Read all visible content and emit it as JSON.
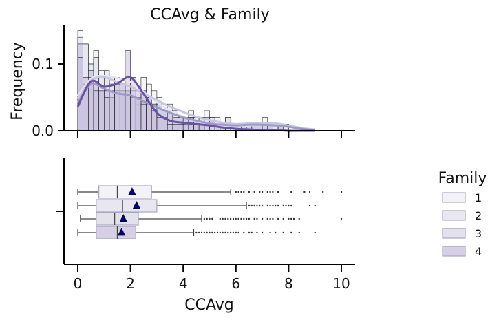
{
  "chart_data": {
    "type": "histogram+boxplot",
    "title": "CCAvg & Family",
    "xlabel": "CCAvg",
    "top_panel": {
      "ylabel": "Frequency",
      "yticks": [
        {
          "value": 0.0,
          "label": "0.0"
        },
        {
          "value": 0.1,
          "label": "0.1"
        }
      ],
      "ylim": [
        0,
        0.158
      ],
      "bin_width": 0.2,
      "kde_points": [
        0,
        0.5,
        1,
        1.5,
        2,
        2.5,
        3,
        3.5,
        4,
        4.5,
        5,
        5.5,
        6,
        6.5,
        7,
        7.5,
        8,
        8.5,
        9
      ],
      "series": [
        {
          "name": "1",
          "color": "#efedf5",
          "kde_color": "#e6e3f0",
          "hist": [
            0.15,
            0.13,
            0.1,
            0.12,
            0.09,
            0.08,
            0.08,
            0.08,
            0.06,
            0.06,
            0.05,
            0.04,
            0.08,
            0.07,
            0.06,
            0.05,
            0.03,
            0.04,
            0.03,
            0.02,
            0.02,
            0.03,
            0.02,
            0.02,
            0.03,
            0.02,
            0.02,
            0.01,
            0.02,
            0.01,
            0.01,
            0.01,
            0.01,
            0.01,
            0.01,
            0.02,
            0.01,
            0.01,
            0.01,
            0.01
          ],
          "kde": [
            0.052,
            0.078,
            0.082,
            0.079,
            0.073,
            0.058,
            0.043,
            0.03,
            0.021,
            0.014,
            0.01,
            0.007,
            0.006,
            0.008,
            0.01,
            0.009,
            0.006,
            0.003,
            0.001
          ]
        },
        {
          "name": "2",
          "color": "#dadaeb",
          "kde_color": "#c7c5e1",
          "hist": [
            0.14,
            0.13,
            0.1,
            0.11,
            0.08,
            0.09,
            0.07,
            0.07,
            0.07,
            0.06,
            0.06,
            0.05,
            0.06,
            0.05,
            0.04,
            0.04,
            0.03,
            0.03,
            0.03,
            0.02,
            0.02,
            0.02,
            0.02,
            0.02,
            0.02,
            0.02,
            0.01,
            0.01,
            0.02,
            0.01,
            0.01,
            0.01,
            0.01,
            0.01,
            0.01,
            0.01,
            0.01,
            0.01,
            0.01,
            0.01
          ],
          "kde": [
            0.048,
            0.075,
            0.08,
            0.073,
            0.066,
            0.056,
            0.046,
            0.036,
            0.028,
            0.021,
            0.016,
            0.012,
            0.01,
            0.011,
            0.012,
            0.011,
            0.008,
            0.004,
            0.002
          ]
        },
        {
          "name": "3",
          "color": "#bcbddc",
          "kde_color": "#9e9ac8",
          "hist": [
            0.13,
            0.07,
            0.09,
            0.07,
            0.06,
            0.06,
            0.05,
            0.06,
            0.06,
            0.06,
            0.05,
            0.05,
            0.06,
            0.05,
            0.04,
            0.04,
            0.03,
            0.03,
            0.02,
            0.02,
            0.02,
            0.02,
            0.01,
            0.01,
            0.01,
            0.01,
            0.01,
            0.01,
            0.01,
            0.01,
            0.01,
            0.01,
            0.01,
            0.01,
            0.01,
            0.01,
            0.01,
            0.0,
            0.01,
            0.0
          ],
          "kde": [
            0.042,
            0.07,
            0.063,
            0.056,
            0.053,
            0.044,
            0.035,
            0.027,
            0.02,
            0.015,
            0.011,
            0.009,
            0.008,
            0.009,
            0.009,
            0.008,
            0.006,
            0.003,
            0.001
          ]
        },
        {
          "name": "4",
          "color": "#c8bcdc",
          "kde_color": "#6a51a3",
          "hist": [
            0.11,
            0.08,
            0.08,
            0.06,
            0.06,
            0.05,
            0.06,
            0.07,
            0.07,
            0.12,
            0.08,
            0.06,
            0.04,
            0.04,
            0.03,
            0.02,
            0.02,
            0.01,
            0.01,
            0.01,
            0.01,
            0.01,
            0.01,
            0.01,
            0.0,
            0.0,
            0.0,
            0.0,
            0.0,
            0.0,
            0.0,
            0.0,
            0.0,
            0.0,
            0.0,
            0.0,
            0.0,
            0.0,
            0.0,
            0.0
          ],
          "kde": [
            0.036,
            0.074,
            0.066,
            0.071,
            0.08,
            0.055,
            0.027,
            0.015,
            0.012,
            0.01,
            0.008,
            0.005,
            0.003,
            0.002,
            0.001,
            0.001,
            0.0,
            0.0,
            0.0
          ]
        }
      ]
    },
    "bottom_panel": {
      "xticks": [
        {
          "value": 0,
          "label": "0"
        },
        {
          "value": 2,
          "label": "2"
        },
        {
          "value": 4,
          "label": "4"
        },
        {
          "value": 6,
          "label": "6"
        },
        {
          "value": 8,
          "label": "8"
        },
        {
          "value": 10,
          "label": "10"
        }
      ],
      "xlim": [
        -0.5,
        10.5
      ],
      "boxes": [
        {
          "name": "1",
          "color": "#f3f2f7",
          "min": 0.0,
          "q1": 0.8,
          "median": 1.5,
          "q3": 2.8,
          "max": 5.8,
          "mean": 2.06,
          "outliers": [
            6.0,
            6.1,
            6.2,
            6.3,
            6.5,
            6.7,
            6.9,
            7.0,
            7.2,
            7.3,
            7.4,
            7.6,
            8.1,
            8.6,
            8.8,
            9.3,
            10.0
          ]
        },
        {
          "name": "2",
          "color": "#e8e7f0",
          "min": 0.0,
          "q1": 0.7,
          "median": 1.7,
          "q3": 3.0,
          "max": 6.4,
          "mean": 2.23,
          "outliers": [
            6.5,
            6.6,
            6.7,
            6.8,
            6.9,
            7.0,
            7.2,
            7.3,
            7.4,
            7.5,
            7.6,
            7.8,
            7.9,
            8.0,
            8.1,
            8.8,
            9.0
          ]
        },
        {
          "name": "3",
          "color": "#e2e1ec",
          "min": 0.1,
          "q1": 0.7,
          "median": 1.4,
          "q3": 2.3,
          "max": 4.7,
          "mean": 1.73,
          "outliers": [
            4.8,
            4.9,
            5.0,
            5.1,
            5.4,
            5.5,
            5.6,
            5.7,
            5.8,
            5.9,
            6.0,
            6.1,
            6.2,
            6.3,
            6.4,
            6.5,
            6.7,
            6.8,
            7.0,
            7.2,
            7.3,
            7.4,
            7.6,
            7.8,
            8.0,
            8.1,
            8.2,
            8.4,
            10.0
          ]
        },
        {
          "name": "4",
          "color": "#d6cfe5",
          "min": 0.0,
          "q1": 0.7,
          "median": 1.5,
          "q3": 2.2,
          "max": 4.4,
          "mean": 1.66,
          "outliers": [
            4.5,
            4.6,
            4.7,
            4.8,
            4.9,
            5.0,
            5.1,
            5.2,
            5.3,
            5.4,
            5.5,
            5.6,
            5.7,
            5.8,
            5.9,
            6.0,
            6.1,
            6.3,
            6.5,
            6.6,
            6.8,
            7.0,
            7.3,
            7.5,
            7.8,
            8.1,
            8.4,
            9.0
          ]
        }
      ]
    },
    "legend": {
      "title": "Family",
      "placement": "right",
      "items": [
        {
          "label": "1",
          "color": "#f3f2f7"
        },
        {
          "label": "2",
          "color": "#e8e7f0"
        },
        {
          "label": "3",
          "color": "#e2e1ec"
        },
        {
          "label": "4",
          "color": "#d6cfe5"
        }
      ]
    },
    "mean_marker_color": "#00008b",
    "grid": false
  }
}
